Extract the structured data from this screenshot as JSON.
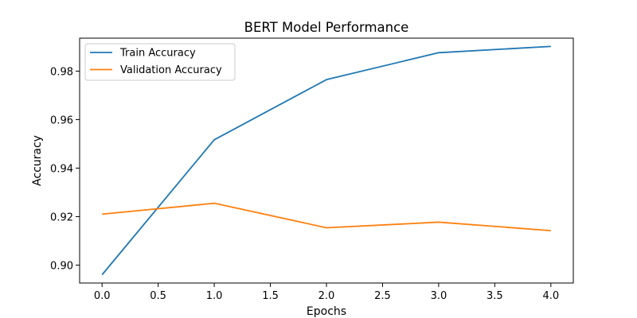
{
  "chart_data": {
    "type": "line",
    "title": "BERT Model Performance",
    "xlabel": "Epochs",
    "ylabel": "Accuracy",
    "x": [
      0,
      1,
      2,
      3,
      4
    ],
    "series": [
      {
        "name": "Train Accuracy",
        "color": "#1f77b4",
        "values": [
          0.896,
          0.9517,
          0.9765,
          0.9876,
          0.9902
        ]
      },
      {
        "name": "Validation Accuracy",
        "color": "#ff7f0e",
        "values": [
          0.921,
          0.9255,
          0.9154,
          0.9177,
          0.9142
        ]
      }
    ],
    "xlim": [
      -0.2,
      4.2
    ],
    "ylim": [
      0.8926,
      0.9936
    ],
    "xticks": [
      0,
      0.5,
      1,
      1.5,
      2,
      2.5,
      3,
      3.5,
      4
    ],
    "xtick_labels": [
      "0.0",
      "0.5",
      "1.0",
      "1.5",
      "2.0",
      "2.5",
      "3.0",
      "3.5",
      "4.0"
    ],
    "yticks": [
      0.9,
      0.92,
      0.94,
      0.96,
      0.98
    ],
    "ytick_labels": [
      "0.90",
      "0.92",
      "0.94",
      "0.96",
      "0.98"
    ],
    "grid": false,
    "legend_position": "upper-left"
  }
}
